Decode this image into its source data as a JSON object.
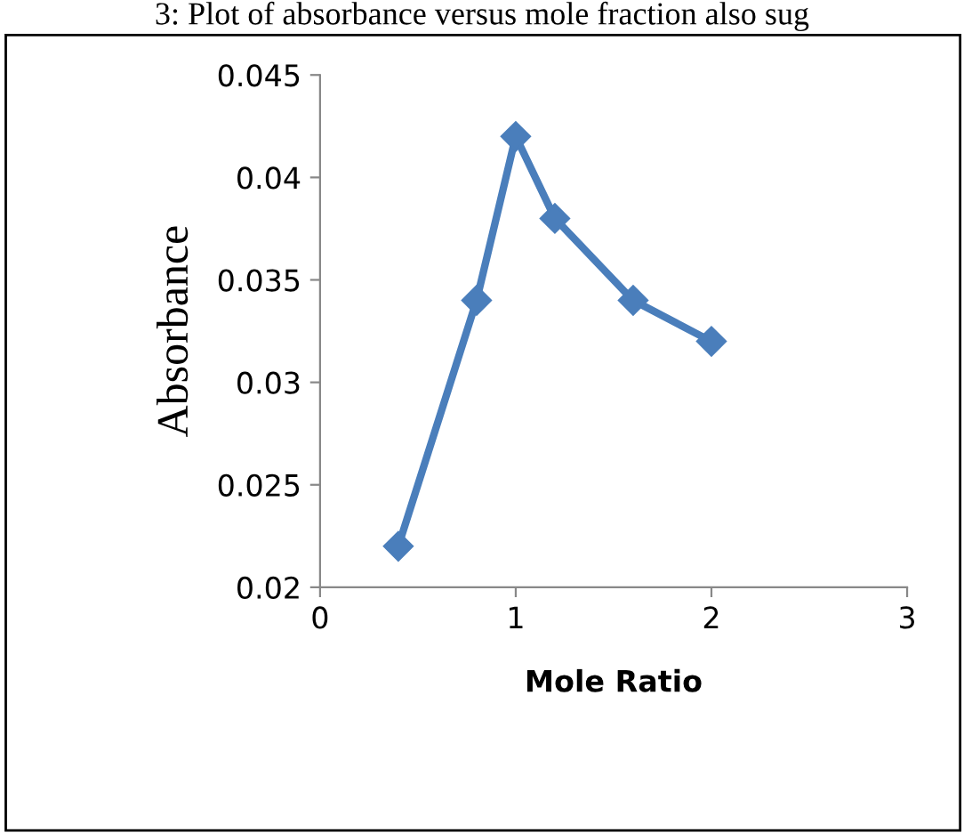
{
  "chart_data": {
    "type": "line",
    "annotations": [
      "3: Plot of absorbance versus mole fraction also sug"
    ],
    "xlabel": "Mole Ratio",
    "ylabel": "Absorbance",
    "series": [
      {
        "color": "#4a7ebb",
        "x": [
          0.4,
          0.8,
          1.0,
          1.2,
          1.6,
          2.0
        ],
        "values": [
          0.022,
          0.034,
          0.042,
          0.038,
          0.034,
          0.032
        ]
      }
    ],
    "xlim": [
      0,
      3
    ],
    "xticks": [
      0,
      1,
      2,
      3
    ],
    "ylim": [
      0.02,
      0.045
    ],
    "yticks": [
      0.02,
      0.025,
      0.03,
      0.035,
      0.04,
      0.045
    ],
    "marker": "diamond",
    "line_style": "solid",
    "grid": false,
    "legend": false
  }
}
